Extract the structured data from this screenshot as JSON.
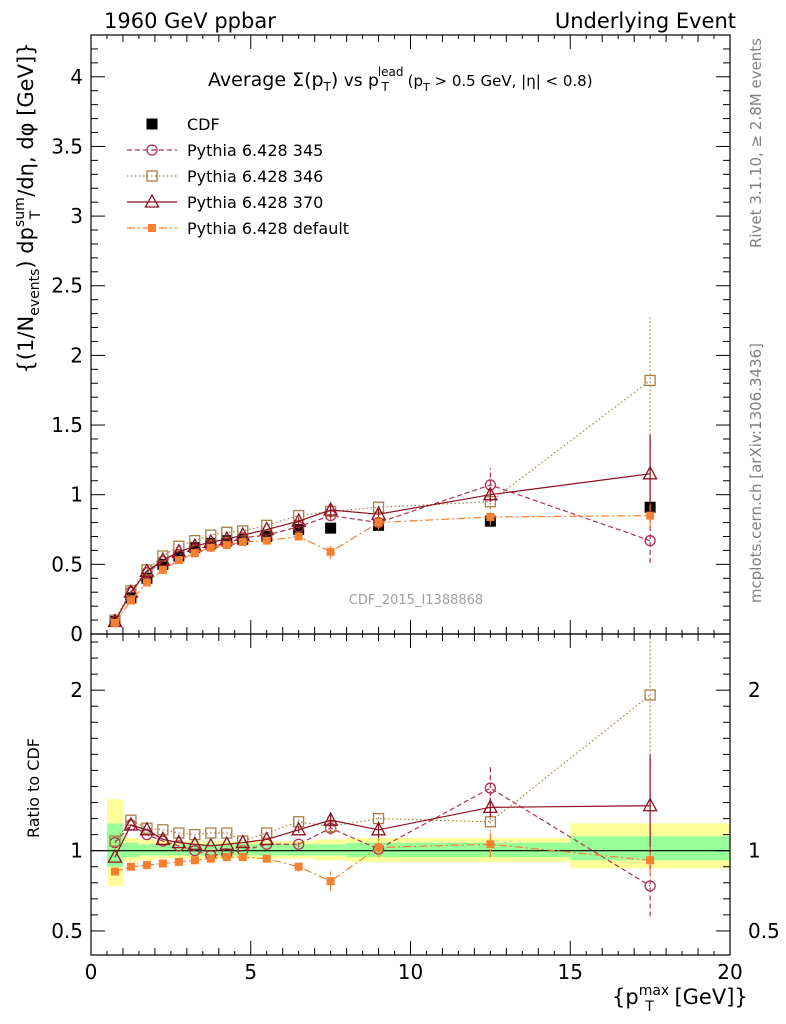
{
  "header": {
    "left": "1960 GeV ppbar",
    "right": "Underlying Event",
    "side_top": "Rivet 3.1.10, ≥ 2.8M events",
    "side_bottom": "mcplots.cern.ch [arXiv:1306.3436]",
    "analysis_id": "CDF_2015_I1388868"
  },
  "colors": {
    "data": "#000000",
    "p345": "#b03050",
    "p346": "#a88040",
    "p370": "#8b1020",
    "pdef": "#f58030",
    "band_outer": "#ffff99",
    "band_inner": "#99ff99"
  },
  "chart_data": [
    {
      "type": "scatter",
      "title": "Average Σ(pT) vs pT lead (pT > 0.5 GeV, |η| < 0.8)",
      "ylabel": "{(1/Nevents) dpT sum/dη, dφ [GeV]}",
      "xlim": [
        0,
        20
      ],
      "ylim": [
        0,
        4.3
      ],
      "y_ticks": [
        "0",
        "0.5",
        "1",
        "1.5",
        "2",
        "2.5",
        "3",
        "3.5",
        "4"
      ],
      "legend_position": "top-left",
      "x": [
        0.75,
        1.25,
        1.75,
        2.25,
        2.75,
        3.25,
        3.75,
        4.25,
        4.75,
        5.5,
        6.5,
        7.5,
        9.0,
        12.5,
        17.5
      ],
      "series": [
        {
          "name": "CDF",
          "key": "data",
          "marker": "square-filled",
          "line": "none",
          "values": [
            0.09,
            0.26,
            0.4,
            0.5,
            0.56,
            0.62,
            0.65,
            0.67,
            0.68,
            0.7,
            0.75,
            0.76,
            0.78,
            0.81,
            0.91
          ]
        },
        {
          "name": "Pythia 6.428 345",
          "key": "p345",
          "marker": "circle-open",
          "line": "dashed",
          "values": [
            0.09,
            0.3,
            0.44,
            0.52,
            0.57,
            0.61,
            0.63,
            0.65,
            0.69,
            0.71,
            0.77,
            0.85,
            0.8,
            1.07,
            0.67
          ],
          "errors": [
            0,
            0,
            0,
            0,
            0,
            0,
            0,
            0,
            0,
            0,
            0.02,
            0.03,
            0.03,
            0.12,
            0.16
          ]
        },
        {
          "name": "Pythia 6.428 346",
          "key": "p346",
          "marker": "square-open",
          "line": "dotted",
          "values": [
            0.1,
            0.31,
            0.46,
            0.56,
            0.63,
            0.67,
            0.71,
            0.73,
            0.74,
            0.78,
            0.85,
            0.88,
            0.91,
            0.95,
            1.82
          ],
          "errors": [
            0,
            0,
            0,
            0,
            0,
            0,
            0,
            0,
            0,
            0,
            0.02,
            0.03,
            0.03,
            0.05,
            0.45
          ]
        },
        {
          "name": "Pythia 6.428 370",
          "key": "p370",
          "marker": "triangle-open",
          "line": "solid",
          "values": [
            0.09,
            0.3,
            0.45,
            0.53,
            0.59,
            0.63,
            0.66,
            0.68,
            0.71,
            0.75,
            0.81,
            0.89,
            0.86,
            1.0,
            1.15
          ],
          "errors": [
            0,
            0,
            0,
            0,
            0,
            0,
            0,
            0,
            0,
            0,
            0.02,
            0.05,
            0.04,
            0.05,
            0.28
          ]
        },
        {
          "name": "Pythia 6.428 default",
          "key": "pdef",
          "marker": "square-filled-small",
          "line": "dashdot",
          "values": [
            0.08,
            0.24,
            0.37,
            0.46,
            0.53,
            0.58,
            0.62,
            0.64,
            0.66,
            0.67,
            0.7,
            0.59,
            0.8,
            0.84,
            0.85
          ],
          "errors": [
            0,
            0,
            0,
            0,
            0,
            0,
            0,
            0,
            0,
            0,
            0.02,
            0.05,
            0.05,
            0.06,
            0.08
          ]
        }
      ]
    },
    {
      "type": "scatter",
      "ylabel": "Ratio to CDF",
      "xlabel": "{pT max [GeV]}",
      "xlim": [
        0,
        20
      ],
      "ylim": [
        0.35,
        2.35
      ],
      "x_ticks": [
        "0",
        "5",
        "10",
        "15",
        "20"
      ],
      "y_ticks": [
        "0.5",
        "1",
        "2"
      ],
      "x": [
        0.75,
        1.25,
        1.75,
        2.25,
        2.75,
        3.25,
        3.75,
        4.25,
        4.75,
        5.5,
        6.5,
        7.5,
        9.0,
        12.5,
        17.5
      ],
      "bands": {
        "bins": [
          [
            0.5,
            1.0
          ],
          [
            1.0,
            1.5
          ],
          [
            1.5,
            2.0
          ],
          [
            2.0,
            2.5
          ],
          [
            2.5,
            3.0
          ],
          [
            3.0,
            3.5
          ],
          [
            3.5,
            4.0
          ],
          [
            4.0,
            4.5
          ],
          [
            4.5,
            5.0
          ],
          [
            5.0,
            6.0
          ],
          [
            6.0,
            7.0
          ],
          [
            7.0,
            8.0
          ],
          [
            8.0,
            10.0
          ],
          [
            10.0,
            15.0
          ],
          [
            15.0,
            20.0
          ]
        ],
        "outer": [
          [
            0.78,
            1.32
          ],
          [
            0.93,
            1.08
          ],
          [
            0.94,
            1.07
          ],
          [
            0.95,
            1.06
          ],
          [
            0.95,
            1.06
          ],
          [
            0.95,
            1.06
          ],
          [
            0.95,
            1.06
          ],
          [
            0.95,
            1.06
          ],
          [
            0.95,
            1.06
          ],
          [
            0.95,
            1.06
          ],
          [
            0.95,
            1.06
          ],
          [
            0.94,
            1.07
          ],
          [
            0.93,
            1.08
          ],
          [
            0.93,
            1.08
          ],
          [
            0.89,
            1.17
          ]
        ],
        "inner": [
          [
            0.9,
            1.17
          ],
          [
            0.96,
            1.05
          ],
          [
            0.97,
            1.04
          ],
          [
            0.97,
            1.04
          ],
          [
            0.97,
            1.04
          ],
          [
            0.97,
            1.04
          ],
          [
            0.97,
            1.04
          ],
          [
            0.97,
            1.04
          ],
          [
            0.97,
            1.04
          ],
          [
            0.97,
            1.04
          ],
          [
            0.97,
            1.04
          ],
          [
            0.97,
            1.04
          ],
          [
            0.96,
            1.05
          ],
          [
            0.96,
            1.05
          ],
          [
            0.94,
            1.09
          ]
        ]
      },
      "series": [
        {
          "name": "Pythia 6.428 345",
          "key": "p345",
          "marker": "circle-open",
          "line": "dashed",
          "values": [
            1.05,
            1.16,
            1.1,
            1.06,
            1.03,
            1.0,
            0.97,
            0.98,
            1.0,
            1.04,
            1.04,
            1.14,
            1.01,
            1.39,
            0.78
          ],
          "errors": [
            0,
            0,
            0,
            0,
            0,
            0,
            0,
            0,
            0,
            0,
            0.02,
            0.04,
            0.04,
            0.15,
            0.19
          ]
        },
        {
          "name": "Pythia 6.428 346",
          "key": "p346",
          "marker": "square-open",
          "line": "dotted",
          "values": [
            1.06,
            1.19,
            1.14,
            1.13,
            1.11,
            1.1,
            1.11,
            1.11,
            1.06,
            1.11,
            1.18,
            1.15,
            1.2,
            1.18,
            1.97
          ],
          "errors": [
            0,
            0,
            0,
            0,
            0,
            0,
            0,
            0,
            0,
            0,
            0.02,
            0.04,
            0.05,
            0.06,
            0.45
          ]
        },
        {
          "name": "Pythia 6.428 370",
          "key": "p370",
          "marker": "triangle-open",
          "line": "solid",
          "values": [
            0.96,
            1.16,
            1.13,
            1.07,
            1.05,
            1.04,
            1.03,
            1.04,
            1.05,
            1.07,
            1.13,
            1.19,
            1.13,
            1.27,
            1.28
          ],
          "errors": [
            0,
            0,
            0,
            0,
            0,
            0,
            0,
            0,
            0,
            0,
            0.02,
            0.05,
            0.05,
            0.06,
            0.32
          ]
        },
        {
          "name": "Pythia 6.428 default",
          "key": "pdef",
          "marker": "square-filled-small",
          "line": "dashdot",
          "values": [
            0.87,
            0.9,
            0.91,
            0.92,
            0.93,
            0.94,
            0.95,
            0.96,
            0.96,
            0.95,
            0.9,
            0.81,
            1.02,
            1.04,
            0.94
          ],
          "errors": [
            0,
            0,
            0,
            0,
            0,
            0,
            0,
            0,
            0,
            0,
            0.03,
            0.06,
            0.06,
            0.08,
            0.1
          ]
        }
      ]
    }
  ]
}
